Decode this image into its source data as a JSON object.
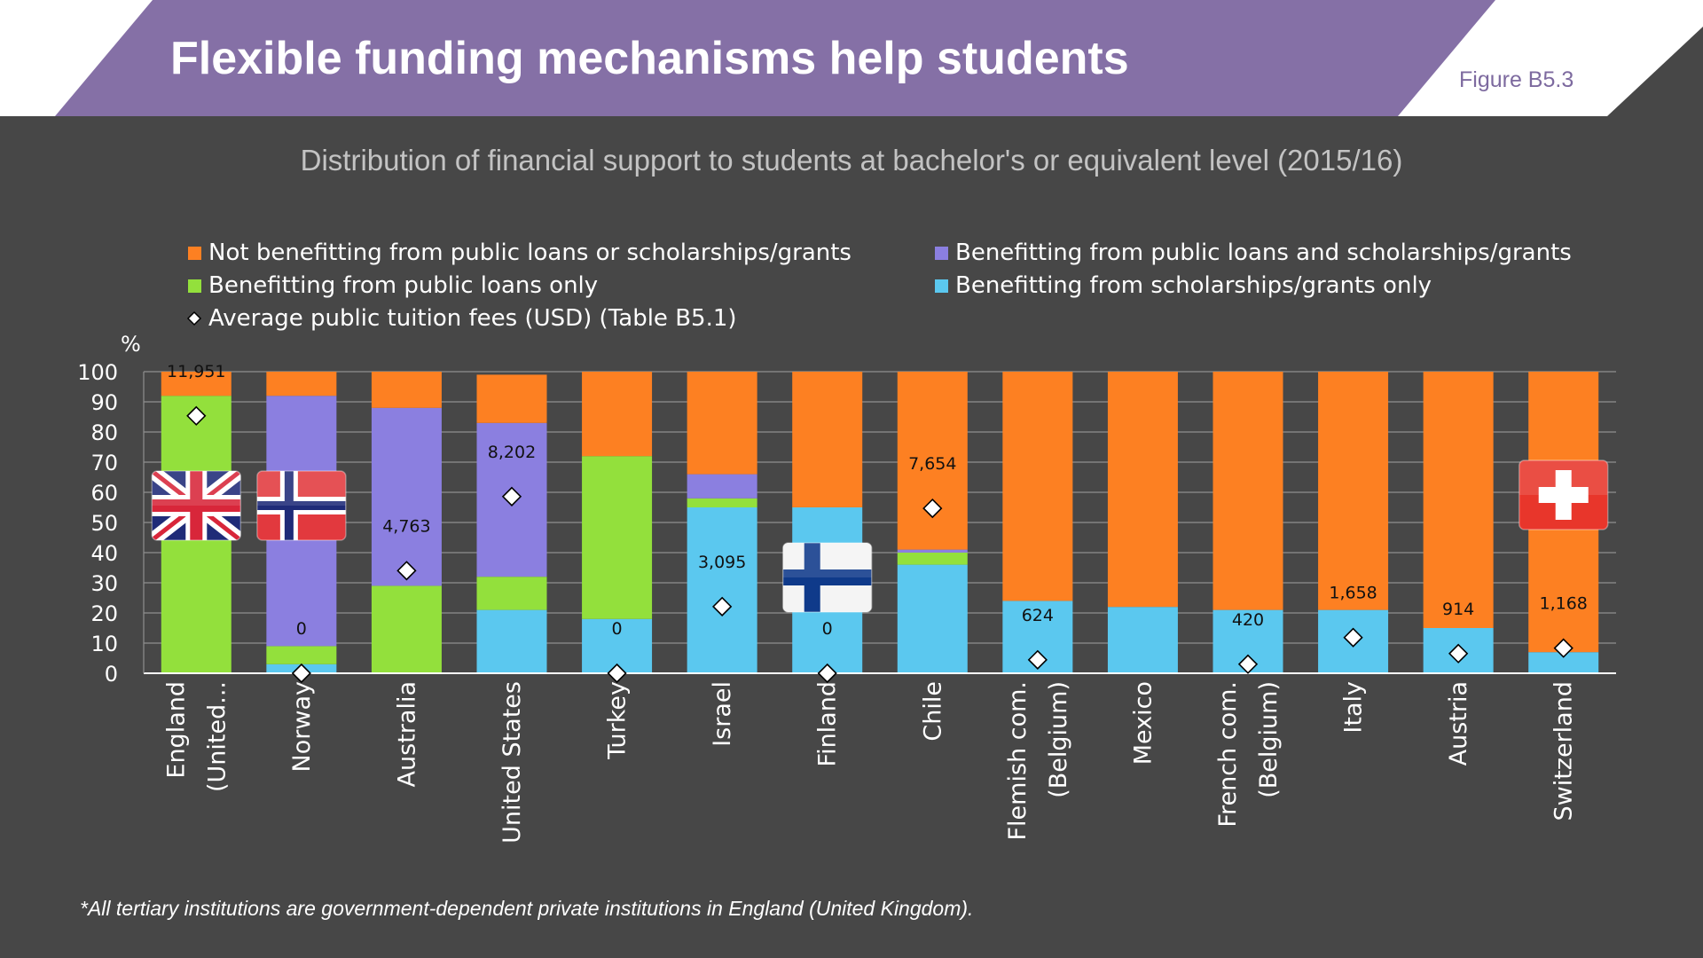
{
  "header": {
    "title": "Flexible funding mechanisms help students",
    "figure_label": "Figure B5.3",
    "banner_color": "#8570a6"
  },
  "footnote": "*All tertiary institutions are government-dependent private institutions in England (United Kingdom).",
  "chart_data": {
    "type": "bar",
    "stacked": true,
    "title": "Distribution of financial support to students at bachelor's or equivalent level (2015/16)",
    "ylabel": "%",
    "ylim": [
      0,
      100
    ],
    "yticks": [
      0,
      10,
      20,
      30,
      40,
      50,
      60,
      70,
      80,
      90,
      100
    ],
    "grid": true,
    "legend_placement": "top",
    "categories": [
      [
        "England",
        "(United..."
      ],
      [
        "Norway"
      ],
      [
        "Australia"
      ],
      [
        "United States"
      ],
      [
        "Turkey"
      ],
      [
        "Israel"
      ],
      [
        "Finland"
      ],
      [
        "Chile"
      ],
      [
        "Flemish com.",
        "(Belgium)"
      ],
      [
        "Mexico"
      ],
      [
        "French com.",
        "(Belgium)"
      ],
      [
        "Italy"
      ],
      [
        "Austria"
      ],
      [
        "Switzerland"
      ]
    ],
    "series": [
      {
        "name": "Benefitting from scholarships/grants only",
        "color": "#5bc8ef",
        "values": [
          0,
          3,
          0,
          21,
          18,
          55,
          55,
          36,
          24,
          22,
          21,
          21,
          15,
          7
        ]
      },
      {
        "name": "Benefitting from public loans only",
        "color": "#93e03c",
        "values": [
          92,
          6,
          29,
          11,
          54,
          3,
          0,
          4,
          0,
          0,
          0,
          0,
          0,
          0
        ]
      },
      {
        "name": "Benefitting from public loans and scholarships/grants",
        "color": "#8b7fe0",
        "values": [
          0,
          83,
          59,
          51,
          0,
          8,
          0,
          1,
          0,
          0,
          0,
          0,
          0,
          0
        ]
      },
      {
        "name": "Not benefitting from public loans or scholarships/grants",
        "color": "#fd8022",
        "values": [
          8,
          8,
          12,
          16,
          28,
          34,
          45,
          59,
          76,
          78,
          79,
          79,
          85,
          93
        ]
      }
    ],
    "legend_order": [
      "Not benefitting from public loans or scholarships/grants",
      "Benefitting from public loans and scholarships/grants",
      "Benefitting from public loans only",
      "Benefitting from scholarships/grants only",
      "Average public tuition fees (USD) (Table B5.1)"
    ],
    "tuition_fees": {
      "name": "Average public tuition fees (USD) (Table B5.1)",
      "marker_color": "#ffffff",
      "values": [
        11951,
        0,
        4763,
        8202,
        0,
        3095,
        0,
        7654,
        624,
        null,
        420,
        1658,
        914,
        1168
      ],
      "labels": [
        "11,951",
        "0",
        "4,763",
        "8,202",
        "0",
        "3,095",
        "0",
        "7,654",
        "624",
        "",
        "420",
        "1,658",
        "914",
        "1,168"
      ],
      "secondary_axis_max_usd": 14000
    },
    "flags": [
      {
        "category": "England",
        "icon": "united-kingdom-flag-icon"
      },
      {
        "category": "Norway",
        "icon": "norway-flag-icon"
      },
      {
        "category": "Finland",
        "icon": "finland-flag-icon"
      },
      {
        "category": "Switzerland",
        "icon": "switzerland-flag-icon"
      }
    ]
  }
}
